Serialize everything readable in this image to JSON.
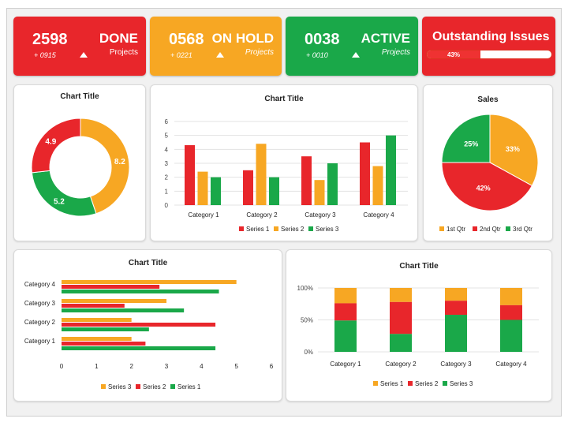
{
  "colors": {
    "red": "#e8262b",
    "orange": "#f7a723",
    "green": "#1aa849"
  },
  "kpis": [
    {
      "number": "2598",
      "delta": "+ 0915",
      "status": "DONE",
      "label": "Projects"
    },
    {
      "number": "0568",
      "delta": "+ 0221",
      "status": "ON HOLD",
      "label": "Projects"
    },
    {
      "number": "0038",
      "delta": "+ 0010",
      "status": "ACTIVE",
      "label": "Projects"
    }
  ],
  "outstanding": {
    "title": "Outstanding Issues",
    "progress_percent": 43,
    "progress_label": "43%"
  },
  "donut": {
    "title": "Chart Title"
  },
  "column_chart": {
    "title": "Chart Title"
  },
  "pie": {
    "title": "Sales"
  },
  "bar_chart": {
    "title": "Chart Title"
  },
  "stacked_chart": {
    "title": "Chart Title"
  },
  "chart_data": [
    {
      "type": "pie",
      "variant": "donut",
      "title": "Chart Title",
      "values": [
        8.2,
        5.2,
        4.9
      ],
      "labels": [
        "8.2",
        "5.2",
        "4.9"
      ],
      "colors": [
        "#f7a723",
        "#1aa849",
        "#e8262b"
      ]
    },
    {
      "type": "bar",
      "title": "Chart Title",
      "categories": [
        "Category 1",
        "Category 2",
        "Category 3",
        "Category 4"
      ],
      "series": [
        {
          "name": "Series 1",
          "values": [
            4.3,
            2.5,
            3.5,
            4.5
          ],
          "color": "#e8262b"
        },
        {
          "name": "Series 2",
          "values": [
            2.4,
            4.4,
            1.8,
            2.8
          ],
          "color": "#f7a723"
        },
        {
          "name": "Series 3",
          "values": [
            2,
            2,
            3,
            5
          ],
          "color": "#1aa849"
        }
      ],
      "ylim": [
        0,
        6
      ],
      "yticks": [
        "0",
        "1",
        "2",
        "3",
        "4",
        "5",
        "6"
      ],
      "grid": true,
      "legend": "bottom"
    },
    {
      "type": "pie",
      "title": "Sales",
      "labels": [
        "1st Qtr",
        "2nd Qtr",
        "3rd Qtr"
      ],
      "values": [
        33,
        42,
        25
      ],
      "value_labels": [
        "33%",
        "42%",
        "25%"
      ],
      "colors": [
        "#f7a723",
        "#e8262b",
        "#1aa849"
      ],
      "legend": "bottom"
    },
    {
      "type": "bar",
      "orientation": "horizontal",
      "title": "Chart Title",
      "categories": [
        "Category 1",
        "Category 2",
        "Category 3",
        "Category 4"
      ],
      "series": [
        {
          "name": "Series 1",
          "values": [
            4.4,
            2.5,
            3.5,
            4.5
          ],
          "color": "#1aa849"
        },
        {
          "name": "Series 2",
          "values": [
            2.4,
            4.4,
            1.8,
            2.8
          ],
          "color": "#e8262b"
        },
        {
          "name": "Series 3",
          "values": [
            2,
            2,
            3,
            5
          ],
          "color": "#f7a723"
        }
      ],
      "legend_order": [
        "Series 3",
        "Series 2",
        "Series 1"
      ],
      "xlim": [
        0,
        6
      ],
      "xticks": [
        "0",
        "1",
        "2",
        "3",
        "4",
        "5",
        "6"
      ],
      "legend": "bottom"
    },
    {
      "type": "bar",
      "variant": "stacked-100",
      "title": "Chart Title",
      "categories": [
        "Category 1",
        "Category 2",
        "Category 3",
        "Category 4"
      ],
      "series": [
        {
          "name": "Series 1",
          "values": [
            24,
            22,
            20,
            27
          ],
          "color": "#f7a723"
        },
        {
          "name": "Series 2",
          "values": [
            27,
            50,
            22,
            23
          ],
          "color": "#e8262b"
        },
        {
          "name": "Series 3",
          "values": [
            49,
            28,
            58,
            50
          ],
          "color": "#1aa849"
        }
      ],
      "yticks": [
        "0%",
        "50%",
        "100%"
      ],
      "legend": "bottom"
    }
  ]
}
